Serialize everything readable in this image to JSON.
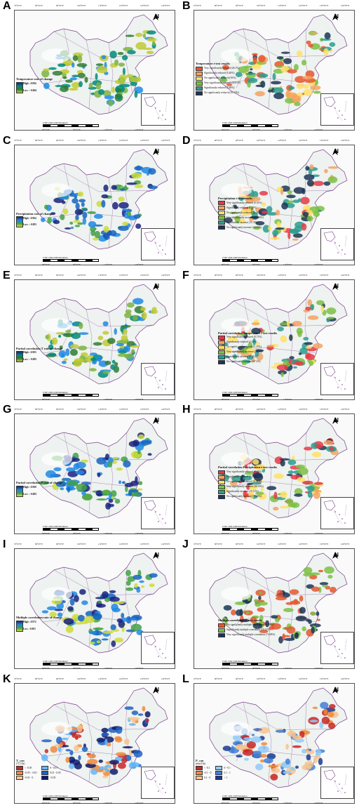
{
  "panels": [
    {
      "id": "A",
      "legend_title": "Temperature rate of change",
      "high": "High : 0.894",
      "low": "Low : -0.864",
      "kind": "gradient",
      "palette": "green"
    },
    {
      "id": "B",
      "legend_title": "Temperature t-text results",
      "items": [
        {
          "label": "Very significantly reduced (26.1%)",
          "color": "#e4572e"
        },
        {
          "label": "Significantly reduced (5.46%)",
          "color": "#f4a261"
        },
        {
          "label": "No significantly reduced (16%)",
          "color": "#ffe066"
        },
        {
          "label": "Very significantly reduced (30.81%)",
          "color": "#7bc043"
        },
        {
          "label": "Significantly reduced (5.48%)",
          "color": "#2a9d8f"
        },
        {
          "label": "No significantly reduced (16.13%)",
          "color": "#1d3557"
        }
      ],
      "kind": "classes"
    },
    {
      "id": "C",
      "legend_title": "Precipitation rate of change",
      "high": "High : 0.964",
      "low": "Low : -0.891",
      "kind": "gradient",
      "palette": "blue"
    },
    {
      "id": "D",
      "legend_title": "Precipitation t-text results",
      "items": [
        {
          "label": "Very significantly reduced (0.41%)",
          "color": "#e63946"
        },
        {
          "label": "Significantly reduced (1.22%)",
          "color": "#f4a261"
        },
        {
          "label": "No significantly reduced (16.41%)",
          "color": "#ffe066"
        },
        {
          "label": "Very significantly increase (22.15%)",
          "color": "#7bc043"
        },
        {
          "label": "Significantly increase (15.39%)",
          "color": "#2a9d8f"
        },
        {
          "label": "No significantly increase (44.42%)",
          "color": "#1d3557"
        }
      ],
      "kind": "classes"
    },
    {
      "id": "E",
      "legend_title": "Partial correlation T rate of change",
      "high": "High : 0.903",
      "low": "Low : -0.895",
      "kind": "gradient",
      "palette": "green"
    },
    {
      "id": "F",
      "legend_title": "Partial correlation Temperature t-test results",
      "items": [
        {
          "label": "Very significantly reduced (0.71%)",
          "color": "#e63946"
        },
        {
          "label": "Significantly reduced (2.21%)",
          "color": "#f4a261"
        },
        {
          "label": "No significantly reduced (41.25%)",
          "color": "#ffe066"
        },
        {
          "label": "Very significantly increase (1.35%)",
          "color": "#7bc043"
        },
        {
          "label": "Significantly increase (7.3%)",
          "color": "#2a9d8f"
        },
        {
          "label": "No significantly increase (47.2%)",
          "color": "#1d3557"
        }
      ],
      "kind": "classes"
    },
    {
      "id": "G",
      "legend_title": "Partial correlation P rate of change",
      "high": "High : 0.969",
      "low": "Low : -0.883",
      "kind": "gradient",
      "palette": "blue"
    },
    {
      "id": "H",
      "legend_title": "Partial correlation Precipitation t-test results",
      "items": [
        {
          "label": "Very significantly reduced (0.34%)",
          "color": "#e63946"
        },
        {
          "label": "Significantly reduced (0.35%)",
          "color": "#f4a261"
        },
        {
          "label": "No significantly reduced (16.31%)",
          "color": "#ffe066"
        },
        {
          "label": "Very significantly increase (28.65%)",
          "color": "#7bc043"
        },
        {
          "label": "Significantly increase (15.12%)",
          "color": "#2a9d8f"
        },
        {
          "label": "No significantly increase (39.49%)",
          "color": "#1d3557"
        }
      ],
      "kind": "classes"
    },
    {
      "id": "I",
      "legend_title": "Multiple correlation rate of change",
      "high": "High : 0.972",
      "low": "Low : 0.001",
      "kind": "gradient",
      "palette": "blue"
    },
    {
      "id": "J",
      "legend_title": "Multiple correlation F-test results",
      "items": [
        {
          "label": "No significantly multiple correlation (15.39%)",
          "color": "#e4572e"
        },
        {
          "label": "Significantly multiple correlation (10.22%)",
          "color": "#7bc043"
        },
        {
          "label": "Very significantly multiple correlation (74.39%)",
          "color": "#1d3557"
        }
      ],
      "kind": "classes"
    },
    {
      "id": "K",
      "legend_title": "T_con",
      "legend_unit": "(°C/10a)",
      "items": [
        {
          "label": "< -0.05",
          "color": "#c62828"
        },
        {
          "label": "-0.05 - -0.01",
          "color": "#ef8a3a"
        },
        {
          "label": "-0.01 - 0",
          "color": "#f7c48d"
        },
        {
          "label": "0 - 0.01",
          "color": "#64b5f6"
        },
        {
          "label": "0.01 - 0.05",
          "color": "#1e63c4"
        },
        {
          "label": ">0.05",
          "color": "#0d1b6b"
        }
      ],
      "kind": "classes",
      "two_col": true
    },
    {
      "id": "L",
      "legend_title": "P_con",
      "legend_unit": "(mm/10a)",
      "items": [
        {
          "label": "< -0.1",
          "color": "#c62828"
        },
        {
          "label": "-0.1 - 0",
          "color": "#ef8a3a"
        },
        {
          "label": "0.1 - 0",
          "color": "#f7c48d"
        },
        {
          "label": "0 - 0.1",
          "color": "#90caf9"
        },
        {
          "label": "0.1 - 1",
          "color": "#3f7fd8"
        },
        {
          "label": "> 1",
          "color": "#1a3a8f"
        }
      ],
      "kind": "classes",
      "two_col": true
    }
  ],
  "north_label": "N",
  "scale_label": "0    500   1,000        2,000 Kilometers",
  "top_ticks": [
    "70°0'0\"E",
    "80°0'0\"E",
    "90°0'0\"E",
    "100°0'0\"E",
    "110°0'0\"E",
    "120°0'0\"E",
    "130°0'0\"E",
    "140°0'0\"E"
  ],
  "bottom_ticks": [
    "80°0'0\"E",
    "90°0'0\"E",
    "110°0'0\"E",
    "120°0'0\"E"
  ],
  "lat_ticks": [
    "50°0'0\"N",
    "40°0'0\"N",
    "30°0'0\"N",
    "20°0'0\"N"
  ]
}
